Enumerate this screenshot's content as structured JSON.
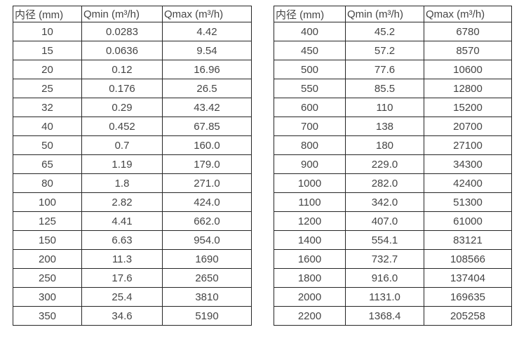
{
  "colors": {
    "background": "#ffffff",
    "border": "#262626",
    "text": "#454545"
  },
  "tables": [
    {
      "name": "small-diameter-table",
      "headers": [
        "内径 (mm)",
        "Qmin (m³/h)",
        "Qmax (m³/h)"
      ],
      "rows": [
        [
          "10",
          "0.0283",
          "4.42"
        ],
        [
          "15",
          "0.0636",
          "9.54"
        ],
        [
          "20",
          "0.12",
          "16.96"
        ],
        [
          "25",
          "0.176",
          "26.5"
        ],
        [
          "32",
          "0.29",
          "43.42"
        ],
        [
          "40",
          "0.452",
          "67.85"
        ],
        [
          "50",
          "0.7",
          "160.0"
        ],
        [
          "65",
          "1.19",
          "179.0"
        ],
        [
          "80",
          "1.8",
          "271.0"
        ],
        [
          "100",
          "2.82",
          "424.0"
        ],
        [
          "125",
          "4.41",
          "662.0"
        ],
        [
          "150",
          "6.63",
          "954.0"
        ],
        [
          "200",
          "11.3",
          "1690"
        ],
        [
          "250",
          "17.6",
          "2650"
        ],
        [
          "300",
          "25.4",
          "3810"
        ],
        [
          "350",
          "34.6",
          "5190"
        ]
      ]
    },
    {
      "name": "large-diameter-table",
      "headers": [
        "内径 (mm)",
        "Qmin (m³/h)",
        "Qmax (m³/h)"
      ],
      "rows": [
        [
          "400",
          "45.2",
          "6780"
        ],
        [
          "450",
          "57.2",
          "8570"
        ],
        [
          "500",
          "77.6",
          "10600"
        ],
        [
          "550",
          "85.5",
          "12800"
        ],
        [
          "600",
          "110",
          "15200"
        ],
        [
          "700",
          "138",
          "20700"
        ],
        [
          "800",
          "180",
          "27100"
        ],
        [
          "900",
          "229.0",
          "34300"
        ],
        [
          "1000",
          "282.0",
          "42400"
        ],
        [
          "1100",
          "342.0",
          "51300"
        ],
        [
          "1200",
          "407.0",
          "61000"
        ],
        [
          "1400",
          "554.1",
          "83121"
        ],
        [
          "1600",
          "732.7",
          "108566"
        ],
        [
          "1800",
          "916.0",
          "137404"
        ],
        [
          "2000",
          "1131.0",
          "169635"
        ],
        [
          "2200",
          "1368.4",
          "205258"
        ]
      ]
    }
  ]
}
